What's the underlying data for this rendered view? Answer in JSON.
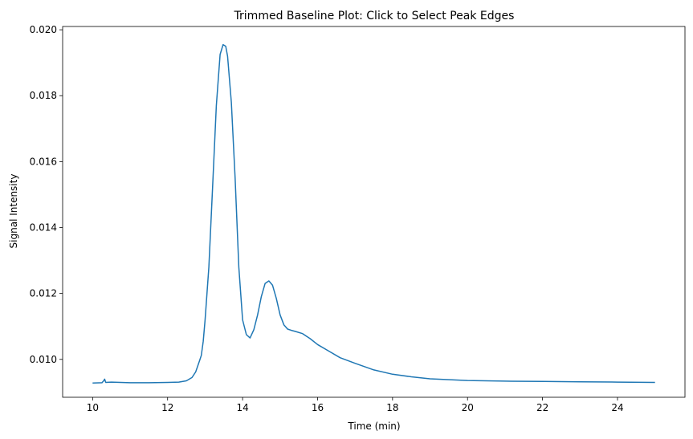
{
  "chart_data": {
    "type": "line",
    "title": "Trimmed Baseline Plot: Click to Select Peak Edges",
    "xlabel": "Time (min)",
    "ylabel": "Signal Intensity",
    "xlim": [
      9.2,
      25.8
    ],
    "ylim": [
      0.00885,
      0.0201
    ],
    "xticks": [
      10,
      12,
      14,
      16,
      18,
      20,
      22,
      24
    ],
    "xtick_labels": [
      "10",
      "12",
      "14",
      "16",
      "18",
      "20",
      "22",
      "24"
    ],
    "yticks": [
      0.01,
      0.012,
      0.014,
      0.016,
      0.018,
      0.02
    ],
    "ytick_labels": [
      "0.010",
      "0.012",
      "0.014",
      "0.016",
      "0.018",
      "0.020"
    ],
    "grid": false,
    "legend": "none",
    "series": [
      {
        "color": "#1f77b4",
        "x": [
          10.0,
          10.25,
          10.3,
          10.32,
          10.35,
          10.5,
          11.0,
          11.5,
          12.0,
          12.3,
          12.5,
          12.65,
          12.75,
          12.85,
          12.9,
          12.95,
          13.0,
          13.1,
          13.2,
          13.3,
          13.4,
          13.48,
          13.55,
          13.6,
          13.7,
          13.8,
          13.9,
          14.0,
          14.1,
          14.2,
          14.3,
          14.4,
          14.5,
          14.6,
          14.7,
          14.8,
          14.9,
          15.0,
          15.1,
          15.2,
          15.3,
          15.4,
          15.6,
          15.8,
          16.0,
          16.3,
          16.6,
          17.0,
          17.5,
          18.0,
          18.5,
          19.0,
          20.0,
          21.0,
          22.0,
          23.0,
          24.0,
          25.0
        ],
        "y": [
          0.00928,
          0.00929,
          0.00936,
          0.0094,
          0.0093,
          0.00931,
          0.00929,
          0.00929,
          0.0093,
          0.00931,
          0.00935,
          0.00945,
          0.00962,
          0.00995,
          0.01012,
          0.01055,
          0.0112,
          0.0128,
          0.0152,
          0.0177,
          0.01925,
          0.01955,
          0.0195,
          0.0192,
          0.0178,
          0.0155,
          0.0128,
          0.0112,
          0.01075,
          0.01065,
          0.0109,
          0.01135,
          0.0119,
          0.0123,
          0.01238,
          0.01225,
          0.01185,
          0.01135,
          0.01105,
          0.01092,
          0.01088,
          0.01085,
          0.01078,
          0.01063,
          0.01045,
          0.01025,
          0.01005,
          0.00988,
          0.00968,
          0.00955,
          0.00947,
          0.00941,
          0.00936,
          0.00934,
          0.00933,
          0.00932,
          0.00931,
          0.0093
        ]
      }
    ]
  }
}
